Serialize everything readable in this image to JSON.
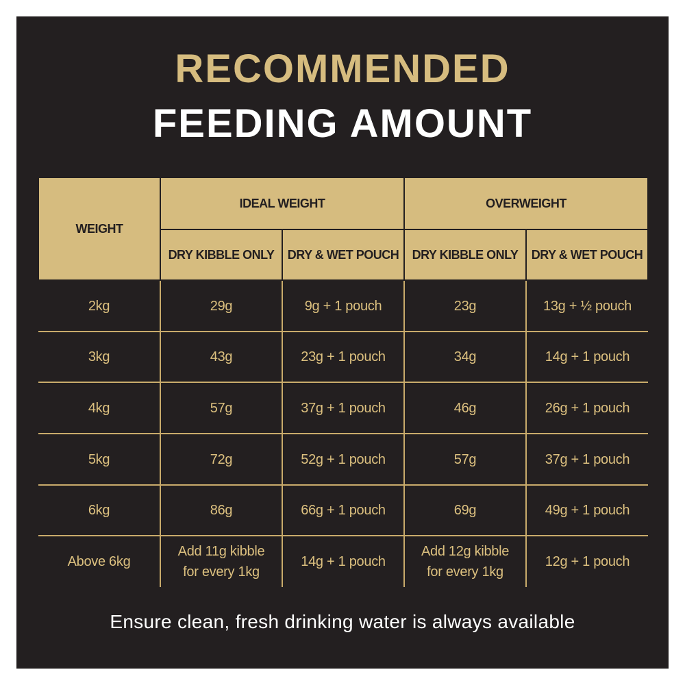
{
  "title": {
    "line1": "RECOMMENDED",
    "line2": "FEEDING AMOUNT"
  },
  "colors": {
    "background": "#231f20",
    "gold": "#d6bc7f",
    "white": "#ffffff"
  },
  "table": {
    "weight_header": "WEIGHT",
    "groups": [
      "IDEAL WEIGHT",
      "OVERWEIGHT"
    ],
    "subheaders": [
      "DRY KIBBLE ONLY",
      "DRY & WET POUCH",
      "DRY KIBBLE ONLY",
      "DRY & WET POUCH"
    ],
    "rows": [
      [
        "2kg",
        "29g",
        "9g + 1 pouch",
        "23g",
        "13g + ½ pouch"
      ],
      [
        "3kg",
        "43g",
        "23g + 1 pouch",
        "34g",
        "14g + 1 pouch"
      ],
      [
        "4kg",
        "57g",
        "37g + 1 pouch",
        "46g",
        "26g + 1 pouch"
      ],
      [
        "5kg",
        "72g",
        "52g + 1 pouch",
        "57g",
        "37g + 1 pouch"
      ],
      [
        "6kg",
        "86g",
        "66g + 1 pouch",
        "69g",
        "49g + 1 pouch"
      ]
    ],
    "last_row": {
      "weight": "Above 6kg",
      "ideal_dry_line1": "Add 11g kibble",
      "ideal_dry_line2": "for every 1kg",
      "ideal_wet": "14g + 1 pouch",
      "over_dry_line1": "Add 12g kibble",
      "over_dry_line2": "for every 1kg",
      "over_wet": "12g + 1 pouch"
    }
  },
  "footer": "Ensure clean, fresh drinking water is always available"
}
